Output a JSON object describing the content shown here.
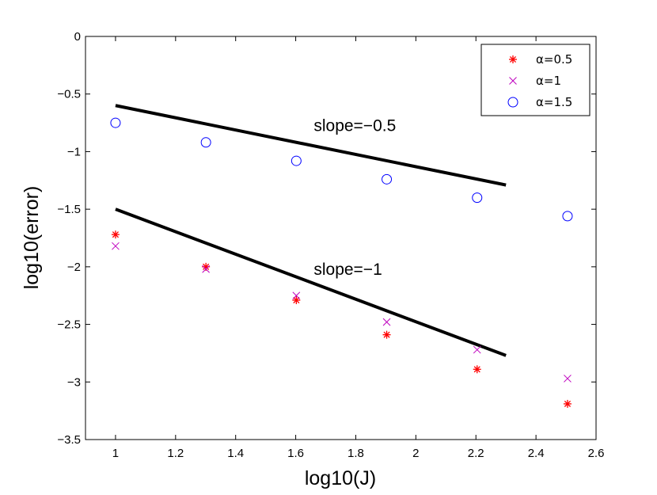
{
  "chart_data": {
    "type": "scatter",
    "title": "",
    "xlabel": "log10(J)",
    "ylabel": "log10(error)",
    "xlim": [
      0.9,
      2.6
    ],
    "ylim": [
      -3.5,
      0
    ],
    "x_ticks": [
      1,
      1.2,
      1.4,
      1.6,
      1.8,
      2,
      2.2,
      2.4,
      2.6
    ],
    "x_tick_labels": [
      "1",
      "1.2",
      "1.4",
      "1.6",
      "1.8",
      "2",
      "2.2",
      "2.4",
      "2.6"
    ],
    "y_ticks": [
      0,
      -0.5,
      -1,
      -1.5,
      -2,
      -2.5,
      -3,
      -3.5
    ],
    "y_tick_labels": [
      "0",
      "−0.5",
      "−1",
      "−1.5",
      "−2",
      "−2.5",
      "−3",
      "−3.5"
    ],
    "grid": false,
    "legend_position": "top-right",
    "series": [
      {
        "name": "α=0.5",
        "marker": "asterisk",
        "color": "#ff0000",
        "x": [
          1,
          1.301,
          1.602,
          1.903,
          2.204,
          2.505
        ],
        "y": [
          -1.72,
          -2.0,
          -2.29,
          -2.59,
          -2.89,
          -3.19
        ]
      },
      {
        "name": "α=1",
        "marker": "x",
        "color": "#bf00bf",
        "x": [
          1,
          1.301,
          1.602,
          1.903,
          2.204,
          2.505
        ],
        "y": [
          -1.82,
          -2.02,
          -2.25,
          -2.48,
          -2.72,
          -2.97
        ]
      },
      {
        "name": "α=1.5",
        "marker": "circle",
        "color": "#0000ff",
        "x": [
          1,
          1.301,
          1.602,
          1.903,
          2.204,
          2.505
        ],
        "y": [
          -0.75,
          -0.92,
          -1.08,
          -1.24,
          -1.4,
          -1.56
        ]
      }
    ],
    "reference_lines": [
      {
        "label": "slope=−0.5",
        "x": [
          1,
          2.3
        ],
        "y": [
          -0.6,
          -1.29
        ]
      },
      {
        "label": "slope=−1",
        "x": [
          1,
          2.3
        ],
        "y": [
          -1.5,
          -2.77
        ]
      }
    ],
    "annotations": [
      {
        "text": "slope=−0.5",
        "x": 1.66,
        "y": -0.82
      },
      {
        "text": "slope=−1",
        "x": 1.66,
        "y": -2.07
      }
    ]
  }
}
